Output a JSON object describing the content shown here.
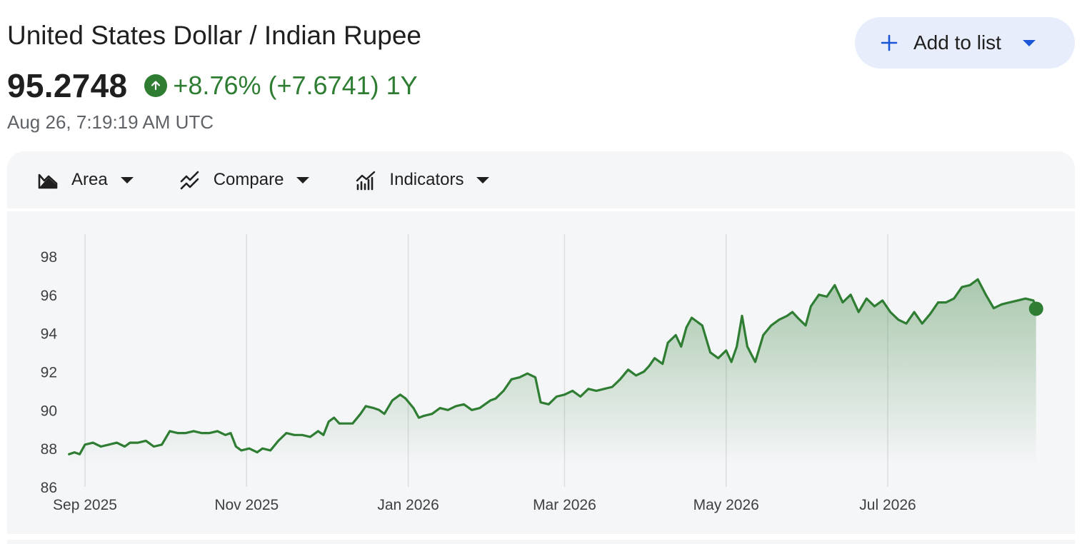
{
  "header": {
    "title": "United States Dollar / Indian Rupee",
    "price": "95.2748",
    "change": "+8.76% (+7.6741) 1Y",
    "timestamp": "Aug 26, 7:19:19 AM UTC"
  },
  "actions": {
    "add_to_list": "Add to list"
  },
  "toolbar": {
    "area": "Area",
    "compare": "Compare",
    "indicators": "Indicators"
  },
  "colors": {
    "line": "#2e7d32",
    "accent": "#1a56d6",
    "button_bg": "#e8edfc",
    "panel_bg": "#f5f6f8"
  },
  "chart_data": {
    "type": "area",
    "title": "",
    "xlabel": "",
    "ylabel": "",
    "ylim": [
      86,
      99
    ],
    "yticks": [
      86,
      88,
      90,
      92,
      94,
      96,
      98
    ],
    "x_tick_labels": [
      "Sep 2025",
      "Nov 2025",
      "Jan 2026",
      "Mar 2026",
      "May 2026",
      "Jul 2026"
    ],
    "x_ticks": [
      "2025-09-01",
      "2025-11-01",
      "2026-01-01",
      "2026-03-01",
      "2026-05-01",
      "2026-07-01"
    ],
    "grid": "vertical",
    "series": [
      {
        "values": [
          [
            "2025-08-26",
            87.7
          ],
          [
            "2025-08-28",
            87.8
          ],
          [
            "2025-08-30",
            87.7
          ],
          [
            "2025-09-01",
            88.2
          ],
          [
            "2025-09-04",
            88.3
          ],
          [
            "2025-09-07",
            88.1
          ],
          [
            "2025-09-10",
            88.2
          ],
          [
            "2025-09-13",
            88.3
          ],
          [
            "2025-09-16",
            88.1
          ],
          [
            "2025-09-18",
            88.3
          ],
          [
            "2025-09-21",
            88.3
          ],
          [
            "2025-09-24",
            88.4
          ],
          [
            "2025-09-27",
            88.1
          ],
          [
            "2025-09-30",
            88.2
          ],
          [
            "2025-10-03",
            88.9
          ],
          [
            "2025-10-06",
            88.8
          ],
          [
            "2025-10-09",
            88.8
          ],
          [
            "2025-10-12",
            88.9
          ],
          [
            "2025-10-15",
            88.8
          ],
          [
            "2025-10-18",
            88.8
          ],
          [
            "2025-10-21",
            88.9
          ],
          [
            "2025-10-24",
            88.7
          ],
          [
            "2025-10-26",
            88.8
          ],
          [
            "2025-10-28",
            88.1
          ],
          [
            "2025-10-30",
            87.9
          ],
          [
            "2025-11-02",
            88.0
          ],
          [
            "2025-11-05",
            87.8
          ],
          [
            "2025-11-07",
            88.0
          ],
          [
            "2025-11-10",
            87.9
          ],
          [
            "2025-11-13",
            88.4
          ],
          [
            "2025-11-16",
            88.8
          ],
          [
            "2025-11-19",
            88.7
          ],
          [
            "2025-11-22",
            88.7
          ],
          [
            "2025-11-25",
            88.6
          ],
          [
            "2025-11-28",
            88.9
          ],
          [
            "2025-11-30",
            88.7
          ],
          [
            "2025-12-02",
            89.4
          ],
          [
            "2025-12-04",
            89.6
          ],
          [
            "2025-12-06",
            89.3
          ],
          [
            "2025-12-08",
            89.3
          ],
          [
            "2025-12-11",
            89.3
          ],
          [
            "2025-12-14",
            89.8
          ],
          [
            "2025-12-16",
            90.2
          ],
          [
            "2025-12-19",
            90.1
          ],
          [
            "2025-12-21",
            90.0
          ],
          [
            "2025-12-23",
            89.8
          ],
          [
            "2025-12-26",
            90.5
          ],
          [
            "2025-12-29",
            90.8
          ],
          [
            "2025-12-31",
            90.6
          ],
          [
            "2026-01-03",
            90.1
          ],
          [
            "2026-01-05",
            89.6
          ],
          [
            "2026-01-07",
            89.7
          ],
          [
            "2026-01-10",
            89.8
          ],
          [
            "2026-01-13",
            90.1
          ],
          [
            "2026-01-16",
            90.0
          ],
          [
            "2026-01-19",
            90.2
          ],
          [
            "2026-01-22",
            90.3
          ],
          [
            "2026-01-25",
            90.0
          ],
          [
            "2026-01-28",
            90.1
          ],
          [
            "2026-02-01",
            90.5
          ],
          [
            "2026-02-03",
            90.6
          ],
          [
            "2026-02-06",
            91.0
          ],
          [
            "2026-02-09",
            91.6
          ],
          [
            "2026-02-12",
            91.7
          ],
          [
            "2026-02-15",
            91.9
          ],
          [
            "2026-02-18",
            91.7
          ],
          [
            "2026-02-20",
            90.4
          ],
          [
            "2026-02-23",
            90.3
          ],
          [
            "2026-02-26",
            90.7
          ],
          [
            "2026-03-01",
            90.8
          ],
          [
            "2026-03-04",
            91.0
          ],
          [
            "2026-03-07",
            90.7
          ],
          [
            "2026-03-10",
            91.1
          ],
          [
            "2026-03-13",
            91.0
          ],
          [
            "2026-03-16",
            91.1
          ],
          [
            "2026-03-19",
            91.2
          ],
          [
            "2026-03-22",
            91.6
          ],
          [
            "2026-03-25",
            92.1
          ],
          [
            "2026-03-28",
            91.8
          ],
          [
            "2026-03-31",
            92.0
          ],
          [
            "2026-04-02",
            92.3
          ],
          [
            "2026-04-04",
            92.7
          ],
          [
            "2026-04-07",
            92.4
          ],
          [
            "2026-04-09",
            93.5
          ],
          [
            "2026-04-12",
            93.9
          ],
          [
            "2026-04-14",
            93.3
          ],
          [
            "2026-04-16",
            94.3
          ],
          [
            "2026-04-18",
            94.8
          ],
          [
            "2026-04-20",
            94.6
          ],
          [
            "2026-04-22",
            94.4
          ],
          [
            "2026-04-25",
            93.0
          ],
          [
            "2026-04-28",
            92.7
          ],
          [
            "2026-05-01",
            93.1
          ],
          [
            "2026-05-03",
            92.5
          ],
          [
            "2026-05-05",
            93.3
          ],
          [
            "2026-05-07",
            94.9
          ],
          [
            "2026-05-09",
            93.3
          ],
          [
            "2026-05-12",
            92.5
          ],
          [
            "2026-05-15",
            93.9
          ],
          [
            "2026-05-18",
            94.4
          ],
          [
            "2026-05-21",
            94.7
          ],
          [
            "2026-05-24",
            94.9
          ],
          [
            "2026-05-26",
            95.1
          ],
          [
            "2026-05-28",
            94.8
          ],
          [
            "2026-05-31",
            94.4
          ],
          [
            "2026-06-02",
            95.4
          ],
          [
            "2026-06-05",
            96.0
          ],
          [
            "2026-06-08",
            95.9
          ],
          [
            "2026-06-11",
            96.5
          ],
          [
            "2026-06-14",
            95.6
          ],
          [
            "2026-06-17",
            96.0
          ],
          [
            "2026-06-20",
            95.1
          ],
          [
            "2026-06-23",
            95.8
          ],
          [
            "2026-06-26",
            95.4
          ],
          [
            "2026-06-29",
            95.7
          ],
          [
            "2026-07-02",
            95.1
          ],
          [
            "2026-07-05",
            94.7
          ],
          [
            "2026-07-08",
            94.5
          ],
          [
            "2026-07-11",
            95.1
          ],
          [
            "2026-07-14",
            94.5
          ],
          [
            "2026-07-17",
            95.0
          ],
          [
            "2026-07-20",
            95.6
          ],
          [
            "2026-07-23",
            95.6
          ],
          [
            "2026-07-26",
            95.8
          ],
          [
            "2026-07-29",
            96.4
          ],
          [
            "2026-08-01",
            96.5
          ],
          [
            "2026-08-04",
            96.8
          ],
          [
            "2026-08-07",
            96.0
          ],
          [
            "2026-08-10",
            95.3
          ],
          [
            "2026-08-13",
            95.5
          ],
          [
            "2026-08-16",
            95.6
          ],
          [
            "2026-08-19",
            95.7
          ],
          [
            "2026-08-22",
            95.8
          ],
          [
            "2026-08-25",
            95.7
          ],
          [
            "2026-08-26",
            95.27
          ]
        ]
      }
    ]
  }
}
